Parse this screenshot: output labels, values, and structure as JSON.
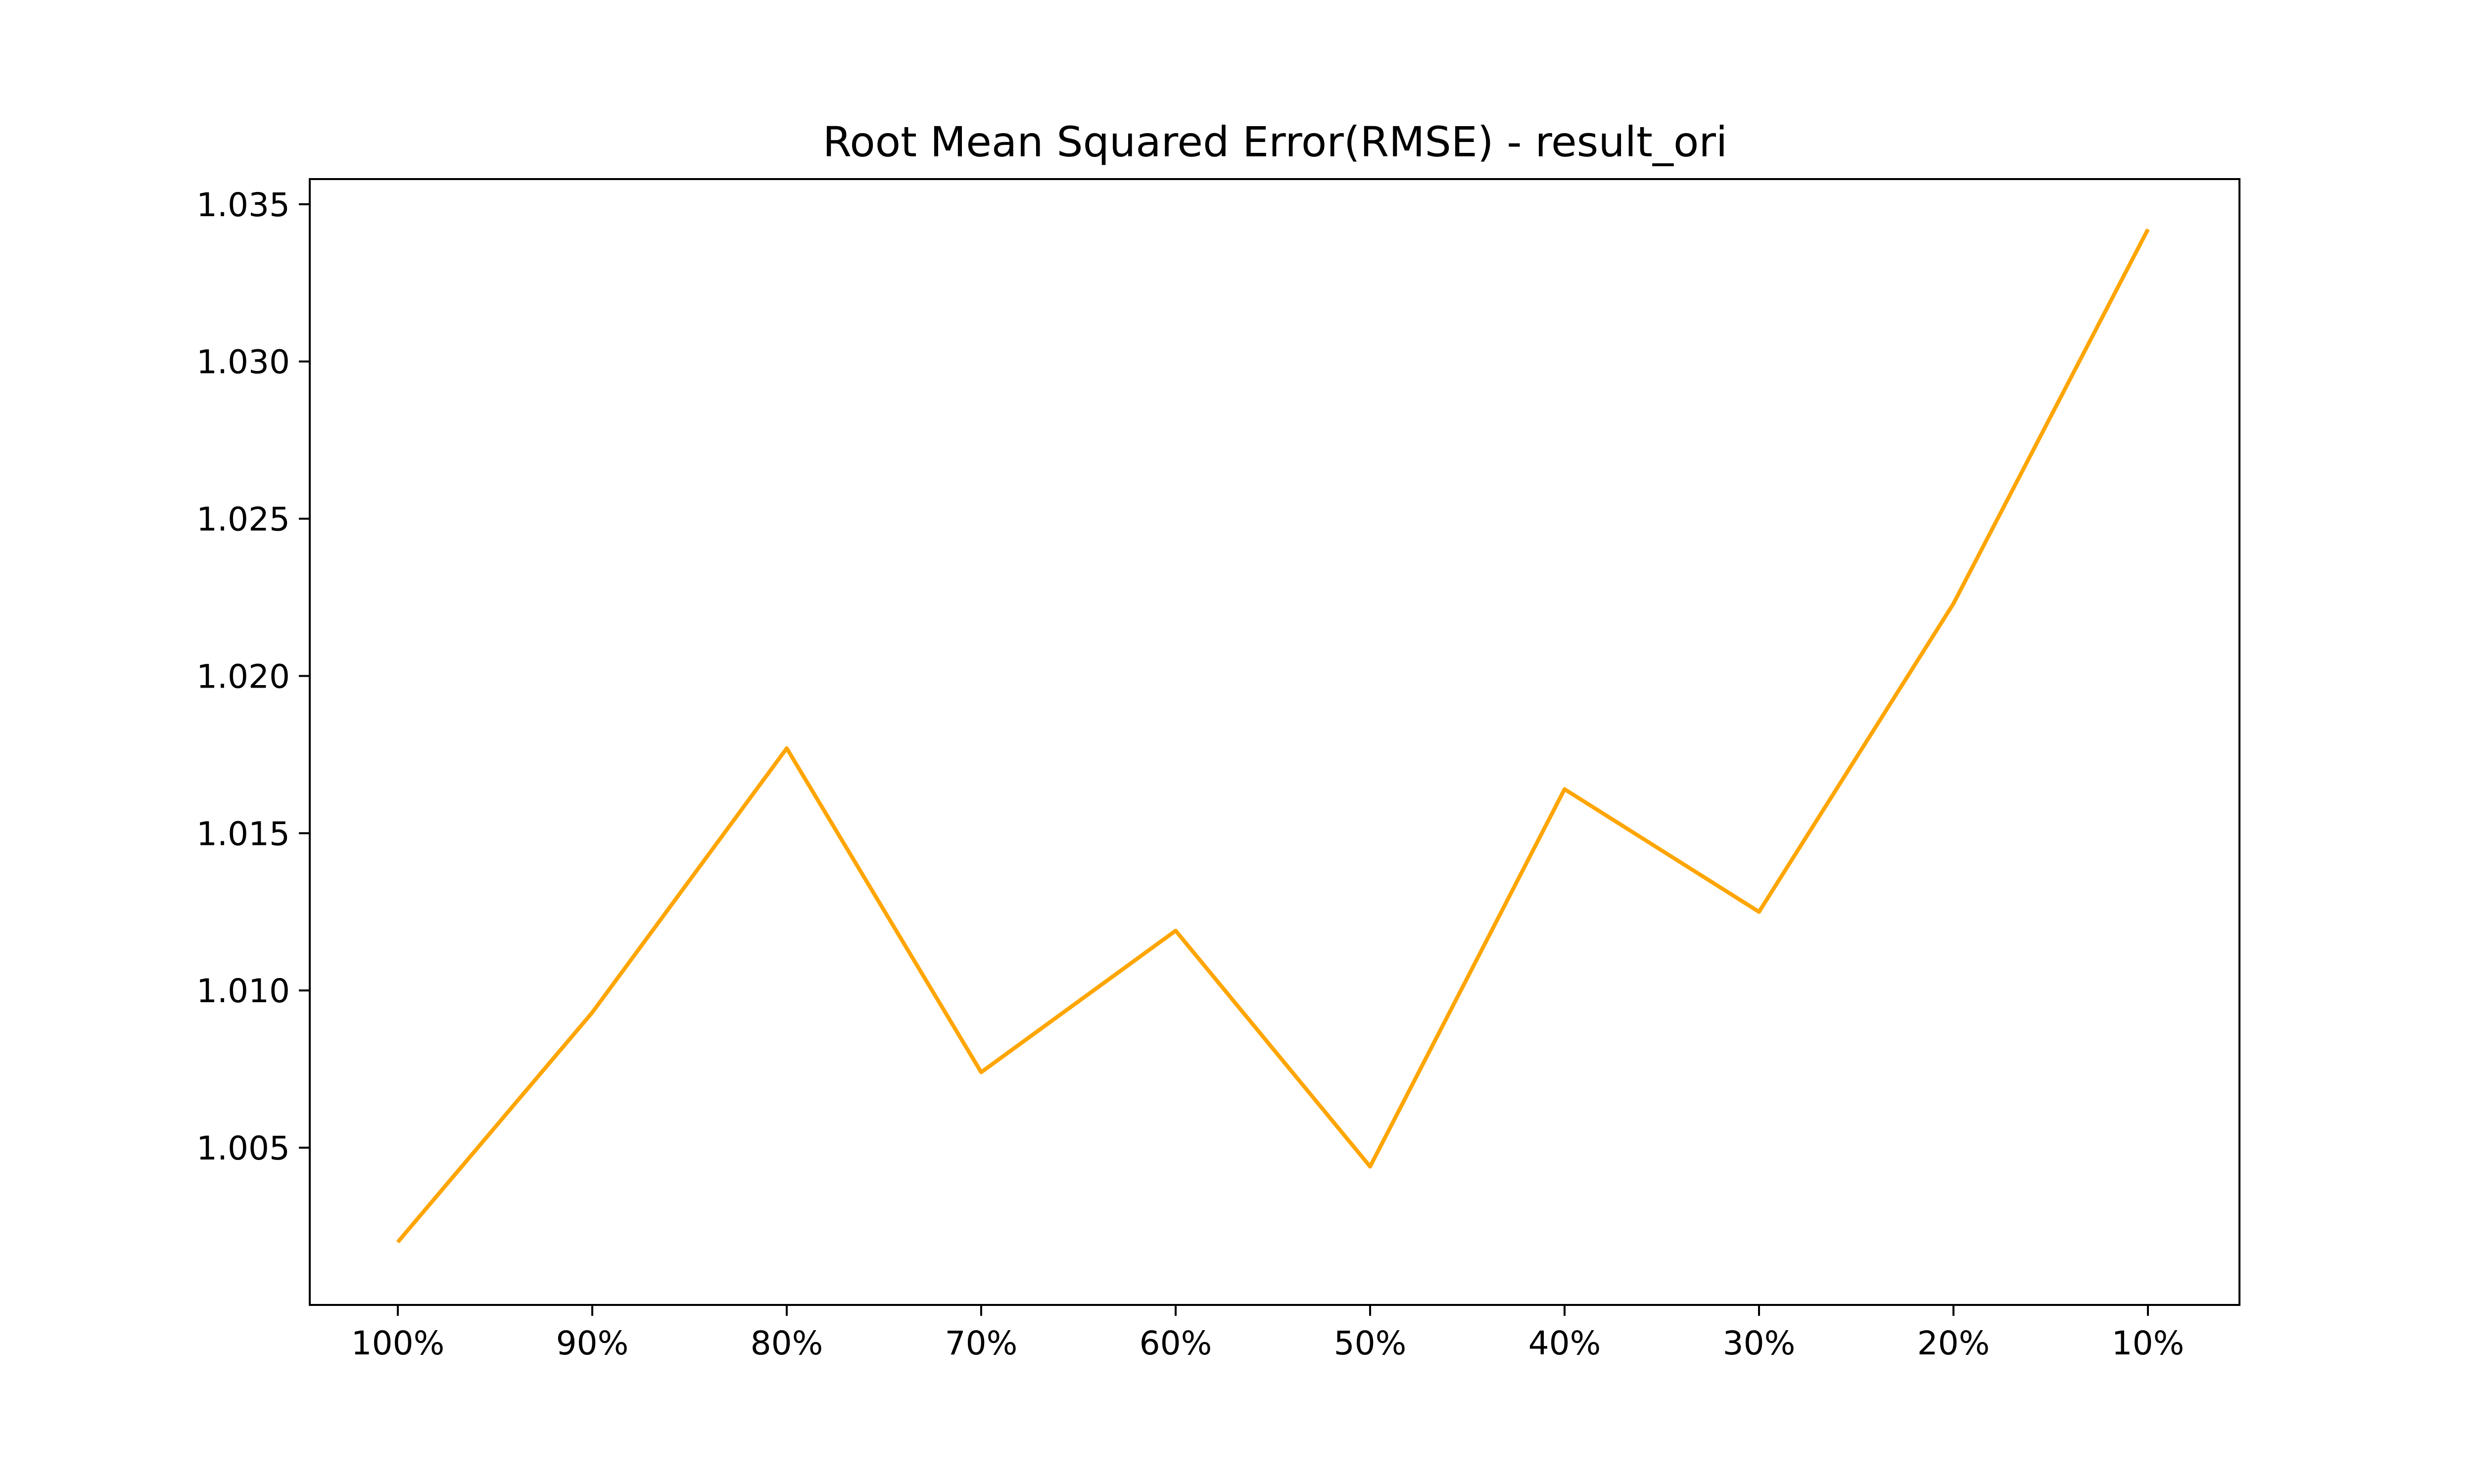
{
  "chart_data": {
    "type": "line",
    "title": "Root Mean Squared Error(RMSE) - result_ori",
    "xlabel": "",
    "ylabel": "",
    "categories": [
      "100%",
      "90%",
      "80%",
      "70%",
      "60%",
      "50%",
      "40%",
      "30%",
      "20%",
      "10%"
    ],
    "series": [
      {
        "values": [
          1.002,
          1.0093,
          1.0177,
          1.0074,
          1.0119,
          1.0044,
          1.0164,
          1.0125,
          1.0223,
          1.0342
        ],
        "color": "#ffa500"
      }
    ],
    "ylim": [
      1.0,
      1.0358
    ],
    "yticks": [
      1.005,
      1.01,
      1.015,
      1.02,
      1.025,
      1.03,
      1.035
    ],
    "ytick_labels": [
      "1.005",
      "1.010",
      "1.015",
      "1.020",
      "1.025",
      "1.030",
      "1.035"
    ],
    "grid": false,
    "legend": "none"
  }
}
